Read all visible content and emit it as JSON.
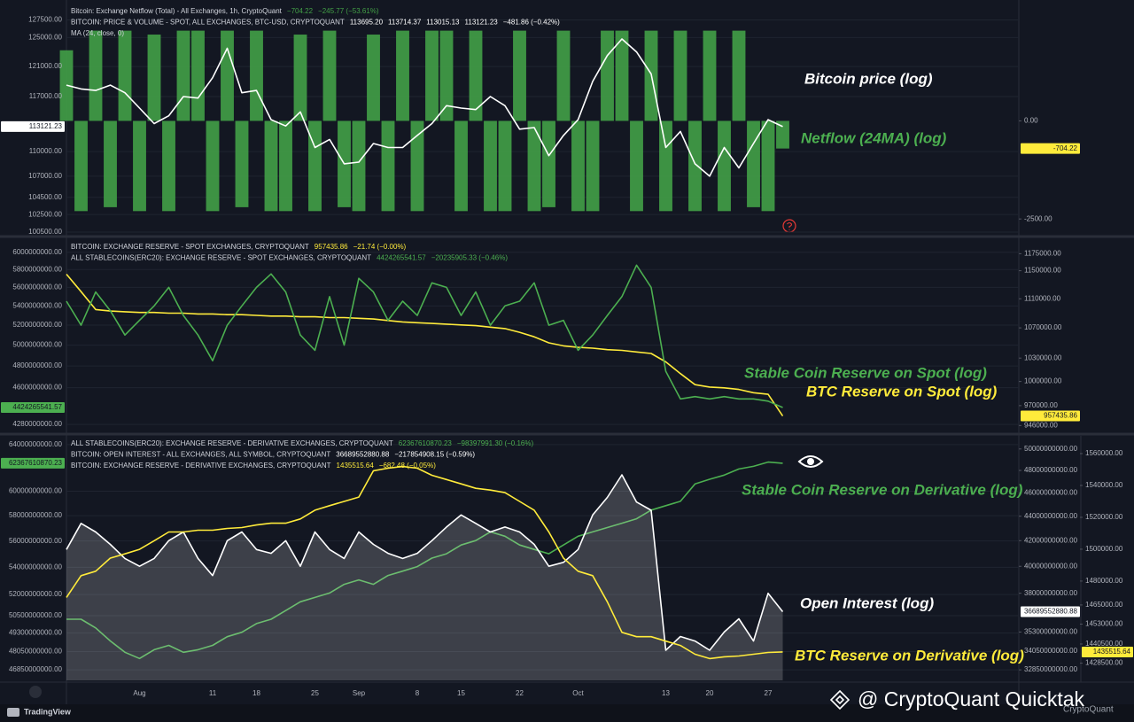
{
  "chart_data": {
    "type": "line",
    "grid": true,
    "categories": [
      null,
      null,
      null,
      null,
      null,
      "Aug",
      null,
      null,
      null,
      null,
      "11",
      null,
      null,
      "18",
      null,
      null,
      null,
      "25",
      null,
      null,
      "Sep",
      null,
      null,
      null,
      "8",
      null,
      null,
      "15",
      null,
      null,
      null,
      "22",
      null,
      null,
      null,
      "Oct",
      null,
      null,
      null,
      null,
      null,
      "13",
      null,
      null,
      "20",
      null,
      null,
      null,
      "27",
      null
    ],
    "watermark": "@ CryptoQuant Quicktak",
    "watermark_logo": "CryptoQuant",
    "brand": "TradingView",
    "panes": [
      {
        "indicator": "MA (24, close, 0)",
        "ylim": [
          100300,
          129600
        ],
        "ylog": true,
        "yticks": [
          {
            "value": 127500,
            "label": "127500.00"
          },
          {
            "value": 125000,
            "label": "125000.00"
          },
          {
            "value": 121000,
            "label": "121000.00"
          },
          {
            "value": 117000,
            "label": "117000.00"
          },
          {
            "value": 110000,
            "label": "110000.00"
          },
          {
            "value": 107000,
            "label": "107000.00"
          },
          {
            "value": 104500,
            "label": "104500.00"
          },
          {
            "value": 102500,
            "label": "102500.00"
          },
          {
            "value": 100500,
            "label": "100500.00"
          }
        ],
        "y2lim": [
          -2880,
          2946
        ],
        "y2log": false,
        "y2ticks": [
          {
            "value": 0,
            "label": "0.00"
          },
          {
            "value": -2500,
            "label": "-2500.00"
          }
        ],
        "annotations": [
          {
            "text": "Bitcoin price (log)",
            "color": "#ffffff"
          },
          {
            "text": "Netflow (24MA) (log)",
            "color": "#4caf50"
          }
        ],
        "series": [
          {
            "name": "Bitcoin: Exchange Netflow (Total) - All Exchanges, 1h, CryptoQuant",
            "legend_values": [
              "−704.22",
              "−245.77 (−53.61%)"
            ],
            "kind": "bar",
            "axis": "y2",
            "color": "#43a047",
            "label_color": "#ffeb3b",
            "values": [
              1800,
              -2300,
              2300,
              -2200,
              2300,
              -2300,
              2200,
              -2300,
              2300,
              2300,
              -2300,
              2300,
              -2200,
              2300,
              -2300,
              -2300,
              2200,
              -2300,
              2300,
              -2200,
              -2300,
              2200,
              -2300,
              2300,
              -2300,
              2300,
              2300,
              -2300,
              2300,
              -2300,
              -2300,
              2300,
              -2300,
              -2200,
              2300,
              -2300,
              -2300,
              2300,
              2300,
              -2300,
              2300,
              -2300,
              2300,
              -2300,
              2300,
              -2300,
              2300,
              -2200,
              -2300,
              -704.22
            ]
          },
          {
            "name": "BITCOIN: PRICE & VOLUME - SPOT, ALL EXCHANGES, BTC-USD, CRYPTOQUANT",
            "legend_values": [
              "113695.20",
              "113714.37",
              "113015.13",
              "113121.23",
              "−481.86 (−0.42%)"
            ],
            "kind": "line",
            "axis": "y",
            "color": "#ffffff",
            "label_color": "#ffffff",
            "values": [
              118500,
              118000,
              117800,
              118500,
              117500,
              115500,
              113500,
              114500,
              117000,
              116800,
              119500,
              123500,
              117500,
              117800,
              114000,
              113200,
              115000,
              110500,
              111500,
              108500,
              108700,
              111000,
              110500,
              110500,
              112000,
              113500,
              115800,
              115500,
              115300,
              117000,
              115800,
              112800,
              113000,
              109500,
              112000,
              114000,
              119000,
              122500,
              124800,
              123000,
              120000,
              110500,
              112500,
              108500,
              107000,
              110500,
              108000,
              111000,
              114000,
              113121.23
            ]
          }
        ]
      },
      {
        "ylim": [
          4229000000,
          6134000000
        ],
        "ylog": true,
        "yticks": [
          {
            "value": 6000000000,
            "label": "6000000000.00"
          },
          {
            "value": 5800000000,
            "label": "5800000000.00"
          },
          {
            "value": 5600000000,
            "label": "5600000000.00"
          },
          {
            "value": 5400000000,
            "label": "5400000000.00"
          },
          {
            "value": 5200000000,
            "label": "5200000000.00"
          },
          {
            "value": 5000000000,
            "label": "5000000000.00"
          },
          {
            "value": 4800000000,
            "label": "4800000000.00"
          },
          {
            "value": 4600000000,
            "label": "4600000000.00"
          },
          {
            "value": 4280000000,
            "label": "4280000000.00"
          }
        ],
        "y2lim": [
          940000,
          1194000
        ],
        "y2log": true,
        "y2ticks": [
          {
            "value": 1175000,
            "label": "1175000.00"
          },
          {
            "value": 1150000,
            "label": "1150000.00"
          },
          {
            "value": 1110000,
            "label": "1110000.00"
          },
          {
            "value": 1070000,
            "label": "1070000.00"
          },
          {
            "value": 1030000,
            "label": "1030000.00"
          },
          {
            "value": 1000000,
            "label": "1000000.00"
          },
          {
            "value": 970000,
            "label": "970000.00"
          },
          {
            "value": 946000,
            "label": "946000.00"
          }
        ],
        "annotations": [
          {
            "text": "Stable Coin Reserve on Spot (log)",
            "color": "#4caf50"
          },
          {
            "text": "BTC Reserve on Spot (log)",
            "color": "#ffeb3b"
          }
        ],
        "series": [
          {
            "name": "BITCOIN: EXCHANGE RESERVE - SPOT EXCHANGES, CRYPTOQUANT",
            "legend_values": [
              "957435.86",
              "−21.74 (−0.00%)"
            ],
            "kind": "line",
            "axis": "y2",
            "color": "#ffeb3b",
            "label_color": "#ffeb3b",
            "values": [
              1145000,
              1120000,
              1095000,
              1093000,
              1092000,
              1091000,
              1091000,
              1090000,
              1090000,
              1089000,
              1089000,
              1088000,
              1088000,
              1087000,
              1086000,
              1086000,
              1085000,
              1085000,
              1084000,
              1084000,
              1083000,
              1082000,
              1080000,
              1078000,
              1077000,
              1076000,
              1075000,
              1074000,
              1073000,
              1071000,
              1069000,
              1064000,
              1058000,
              1050000,
              1046000,
              1044000,
              1043000,
              1041000,
              1040000,
              1038000,
              1036000,
              1025000,
              1010000,
              996000,
              993000,
              992000,
              990000,
              986000,
              984000,
              957435.86
            ]
          },
          {
            "name": "ALL STABLECOINS(ERC20): EXCHANGE RESERVE - SPOT EXCHANGES, CRYPTOQUANT",
            "legend_values": [
              "4424265541.57",
              "−20235905.33 (−0.46%)"
            ],
            "kind": "line",
            "axis": "y",
            "color": "#4caf50",
            "label_color": "#4caf50",
            "values": [
              5450000000,
              5200000000,
              5550000000,
              5350000000,
              5100000000,
              5250000000,
              5400000000,
              5600000000,
              5300000000,
              5100000000,
              4850000000,
              5200000000,
              5400000000,
              5600000000,
              5750000000,
              5550000000,
              5100000000,
              4950000000,
              5500000000,
              5000000000,
              5700000000,
              5550000000,
              5250000000,
              5450000000,
              5300000000,
              5650000000,
              5600000000,
              5300000000,
              5550000000,
              5200000000,
              5400000000,
              5450000000,
              5650000000,
              5200000000,
              5250000000,
              4950000000,
              5100000000,
              5300000000,
              5500000000,
              5850000000,
              5600000000,
              4750000000,
              4500000000,
              4520000000,
              4500000000,
              4520000000,
              4500000000,
              4500000000,
              4480000000,
              4424265541.57
            ]
          }
        ]
      },
      {
        "ylim": [
          46170000000,
          64620000000
        ],
        "ylog": true,
        "yticks": [
          {
            "value": 64000000000,
            "label": "64000000000.00"
          },
          {
            "value": 60000000000,
            "label": "60000000000.00"
          },
          {
            "value": 58000000000,
            "label": "58000000000.00"
          },
          {
            "value": 56000000000,
            "label": "56000000000.00"
          },
          {
            "value": 54000000000,
            "label": "54000000000.00"
          },
          {
            "value": 52000000000,
            "label": "52000000000.00"
          },
          {
            "value": 50500000000,
            "label": "50500000000.00"
          },
          {
            "value": 49300000000,
            "label": "49300000000.00"
          },
          {
            "value": 48050000000,
            "label": "48050000000.00"
          },
          {
            "value": 46850000000,
            "label": "46850000000.00"
          }
        ],
        "y2lim": [
          32200000000,
          51090000000
        ],
        "y2log": true,
        "y2ticks": [
          {
            "value": 50000000000,
            "label": "50000000000.00"
          },
          {
            "value": 48000000000,
            "label": "48000000000.00"
          },
          {
            "value": 46000000000,
            "label": "46000000000.00"
          },
          {
            "value": 44000000000,
            "label": "44000000000.00"
          },
          {
            "value": 42000000000,
            "label": "42000000000.00"
          },
          {
            "value": 40000000000,
            "label": "40000000000.00"
          },
          {
            "value": 38000000000,
            "label": "38000000000.00"
          },
          {
            "value": 35300000000,
            "label": "35300000000.00"
          },
          {
            "value": 34050000000,
            "label": "34050000000.00"
          },
          {
            "value": 32850000000,
            "label": "32850000000.00"
          }
        ],
        "y3lim": [
          1417700,
          1570000
        ],
        "y3log": false,
        "y3ticks": [
          {
            "value": 1560000,
            "label": "1560000.00"
          },
          {
            "value": 1540000,
            "label": "1540000.00"
          },
          {
            "value": 1520000,
            "label": "1520000.00"
          },
          {
            "value": 1500000,
            "label": "1500000.00"
          },
          {
            "value": 1480000,
            "label": "1480000.00"
          },
          {
            "value": 1465000,
            "label": "1465000.00"
          },
          {
            "value": 1453000,
            "label": "1453000.00"
          },
          {
            "value": 1440500,
            "label": "1440500.00"
          },
          {
            "value": 1428500,
            "label": "1428500.00"
          }
        ],
        "annotations": [
          {
            "text": "Stable Coin Reserve on Derivative (log)",
            "color": "#4caf50"
          },
          {
            "text": "Open Interest (log)",
            "color": "#ffffff"
          },
          {
            "text": "BTC Reserve on Derivative (log)",
            "color": "#ffeb3b"
          }
        ],
        "series": [
          {
            "name": "ALL STABLECOINS(ERC20): EXCHANGE RESERVE - DERIVATIVE EXCHANGES, CRYPTOQUANT",
            "legend_values": [
              "62367610870.23",
              "−98397991.30 (−0.16%)"
            ],
            "kind": "line",
            "axis": "y",
            "color": "#4caf50",
            "label_color": "#4caf50",
            "values": [
              50250000000,
              50250000000,
              49650000000,
              48760000000,
              48000000000,
              47590000000,
              48170000000,
              48460000000,
              48000000000,
              48170000000,
              48460000000,
              49050000000,
              49350000000,
              49950000000,
              50250000000,
              50860000000,
              51480000000,
              51790000000,
              52110000000,
              52740000000,
              53060000000,
              52740000000,
              53390000000,
              53710000000,
              54050000000,
              54690000000,
              55020000000,
              55690000000,
              56030000000,
              56710000000,
              56370000000,
              55690000000,
              55350000000,
              55020000000,
              55690000000,
              56370000000,
              56710000000,
              57050000000,
              57400000000,
              57750000000,
              58450000000,
              58810000000,
              59160000000,
              60600000000,
              61000000000,
              61350000000,
              61870000000,
              62100000000,
              62470000000,
              62367610870.23
            ]
          },
          {
            "name": "BITCOIN: OPEN INTEREST - ALL EXCHANGES, ALL SYMBOL, CRYPTOQUANT",
            "legend_values": [
              "36689552880.88",
              "−217854908.15 (−0.59%)"
            ],
            "kind": "area",
            "axis": "y2",
            "color": "#ffffff",
            "label_color": "#ffffff",
            "values": [
              41300000000,
              43400000000,
              42700000000,
              41700000000,
              40600000000,
              40000000000,
              40600000000,
              42000000000,
              42700000000,
              40600000000,
              39300000000,
              42000000000,
              42700000000,
              41300000000,
              41000000000,
              42000000000,
              40000000000,
              42700000000,
              41300000000,
              40600000000,
              42700000000,
              41700000000,
              41000000000,
              40600000000,
              41000000000,
              42000000000,
              43100000000,
              44100000000,
              43400000000,
              42700000000,
              43100000000,
              42700000000,
              41700000000,
              40000000000,
              40300000000,
              41300000000,
              44100000000,
              45600000000,
              47600000000,
              45200000000,
              44500000000,
              34100000000,
              35000000000,
              34700000000,
              34100000000,
              35300000000,
              36200000000,
              34700000000,
              38000000000,
              36689552880.88
            ]
          },
          {
            "name": "BITCOIN: EXCHANGE RESERVE - DERIVATIVE EXCHANGES, CRYPTOQUANT",
            "legend_values": [
              "1435515.64",
              "−682.48 (−0.05%)"
            ],
            "kind": "line",
            "axis": "y3",
            "color": "#ffeb3b",
            "label_color": "#ffeb3b",
            "values": [
              1469700,
              1483400,
              1486200,
              1494400,
              1497100,
              1499900,
              1505300,
              1510800,
              1510800,
              1511900,
              1511900,
              1513000,
              1513600,
              1515200,
              1516300,
              1516300,
              1519000,
              1524500,
              1527300,
              1530000,
              1532700,
              1549200,
              1550800,
              1551900,
              1550800,
              1546400,
              1543700,
              1541000,
              1538200,
              1537100,
              1535500,
              1530000,
              1524500,
              1510800,
              1494400,
              1486200,
              1483400,
              1467000,
              1447800,
              1445100,
              1445100,
              1442300,
              1439600,
              1434100,
              1431400,
              1432500,
              1433000,
              1434100,
              1435200,
              1435515.64
            ]
          }
        ]
      }
    ]
  }
}
